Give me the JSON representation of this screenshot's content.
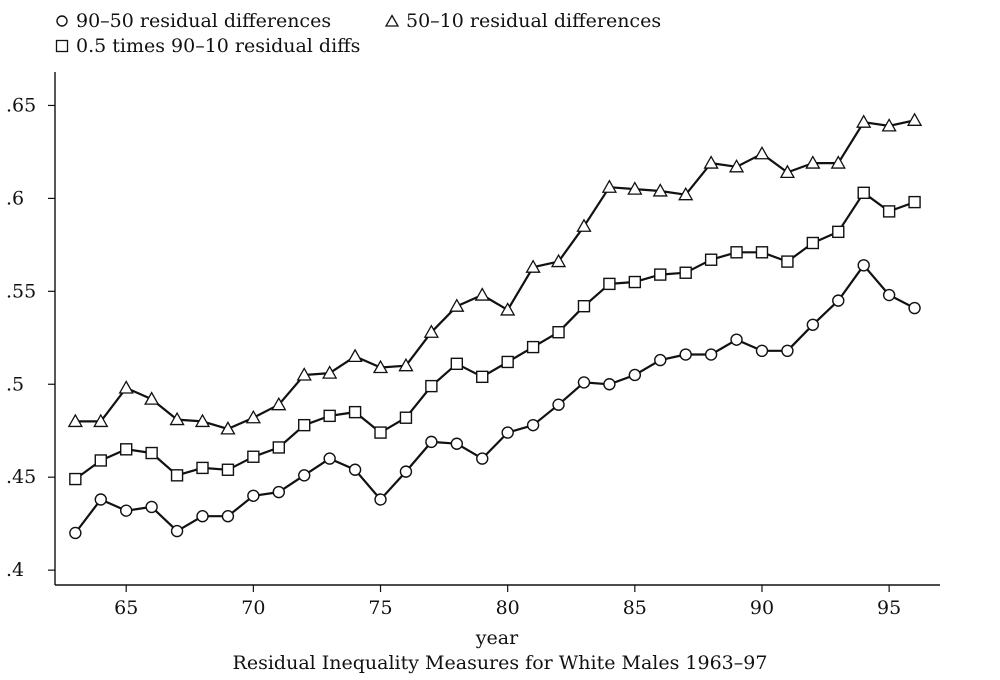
{
  "chart_data": {
    "type": "line",
    "title": "Residual Inequality Measures for White Males 1963–97",
    "xlabel": "year",
    "ylabel": "",
    "xlim": [
      62.2,
      97
    ],
    "ylim": [
      0.392,
      0.668
    ],
    "xticks": [
      65,
      70,
      75,
      80,
      85,
      90,
      95
    ],
    "xtick_labels": [
      "65",
      "70",
      "75",
      "80",
      "85",
      "90",
      "95"
    ],
    "yticks": [
      0.4,
      0.45,
      0.5,
      0.55,
      0.6,
      0.65
    ],
    "ytick_labels": [
      ".4",
      ".45",
      ".5",
      ".55",
      ".6",
      ".65"
    ],
    "grid": false,
    "legend_position": "top-left",
    "x": [
      63,
      64,
      65,
      66,
      67,
      68,
      69,
      70,
      71,
      72,
      73,
      74,
      75,
      76,
      77,
      78,
      79,
      80,
      81,
      82,
      83,
      84,
      85,
      86,
      87,
      88,
      89,
      90,
      91,
      92,
      93,
      94,
      95,
      96
    ],
    "series": [
      {
        "name": "90–50 residual differences",
        "marker": "circle",
        "values": [
          0.42,
          0.438,
          0.432,
          0.434,
          0.421,
          0.429,
          0.429,
          0.44,
          0.442,
          0.451,
          0.46,
          0.454,
          0.438,
          0.453,
          0.469,
          0.468,
          0.46,
          0.474,
          0.478,
          0.489,
          0.501,
          0.5,
          0.505,
          0.513,
          0.516,
          0.516,
          0.524,
          0.518,
          0.518,
          0.532,
          0.545,
          0.564,
          0.548,
          0.541
        ]
      },
      {
        "name": "50–10 residual differences",
        "marker": "triangle",
        "values": [
          0.48,
          0.48,
          0.498,
          0.492,
          0.481,
          0.48,
          0.476,
          0.482,
          0.489,
          0.505,
          0.506,
          0.515,
          0.509,
          0.51,
          0.528,
          0.542,
          0.548,
          0.54,
          0.563,
          0.566,
          0.585,
          0.606,
          0.605,
          0.604,
          0.602,
          0.619,
          0.617,
          0.624,
          0.614,
          0.619,
          0.619,
          0.641,
          0.639,
          0.642
        ]
      },
      {
        "name": "0.5 times 90–10 residual diffs",
        "marker": "square",
        "values": [
          0.449,
          0.459,
          0.465,
          0.463,
          0.451,
          0.455,
          0.454,
          0.461,
          0.466,
          0.478,
          0.483,
          0.485,
          0.474,
          0.482,
          0.499,
          0.511,
          0.504,
          0.512,
          0.52,
          0.528,
          0.542,
          0.554,
          0.555,
          0.559,
          0.56,
          0.567,
          0.571,
          0.571,
          0.566,
          0.576,
          0.582,
          0.603,
          0.593,
          0.598
        ]
      }
    ]
  }
}
